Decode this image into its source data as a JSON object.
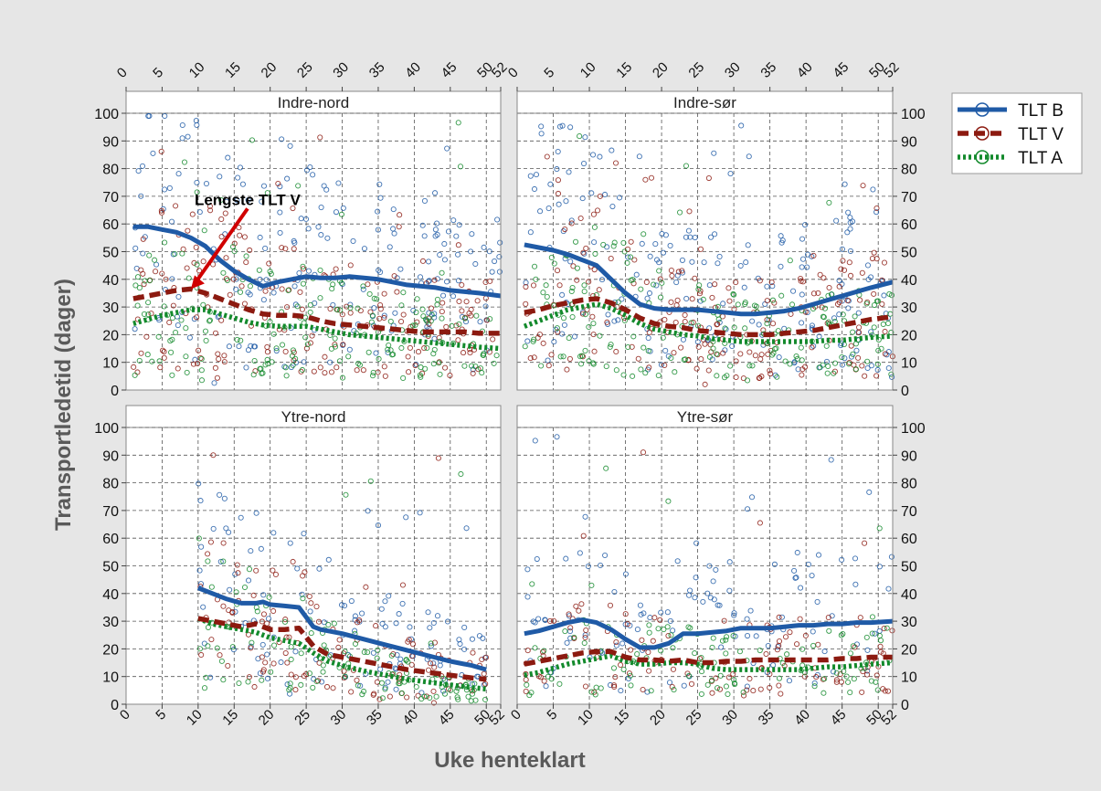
{
  "chart_data": {
    "type": "scatter",
    "ylabel": "Transportledetid (dager)",
    "xlabel": "Uke henteklart",
    "y_ticks": [
      0,
      10,
      20,
      30,
      40,
      50,
      60,
      70,
      80,
      90,
      100
    ],
    "x_ticks": [
      0,
      5,
      10,
      15,
      20,
      25,
      30,
      35,
      40,
      45,
      50,
      52
    ],
    "ylim": [
      0,
      100
    ],
    "xlim": [
      0,
      52
    ],
    "grid": true,
    "legend_position": "right",
    "colors": {
      "TLT B": "#1f5aa6",
      "TLT V": "#8c1a10",
      "TLT A": "#138a2c",
      "annotation": "#d00000"
    },
    "legend": [
      {
        "name": "TLT B",
        "style": "solid"
      },
      {
        "name": "TLT V",
        "style": "dashed"
      },
      {
        "name": "TLT A",
        "style": "dotted"
      }
    ],
    "panels": [
      {
        "title": "Indre-nord",
        "annotation": "Lengste TLT V",
        "series": [
          {
            "name": "TLT B",
            "x": [
              1,
              3,
              5,
              7,
              9,
              11,
              13,
              15,
              17,
              19,
              21,
              23,
              25,
              27,
              29,
              31,
              33,
              35,
              37,
              39,
              41,
              43,
              45,
              47,
              49,
              52
            ],
            "y": [
              59,
              59,
              58,
              57,
              55,
              52,
              47,
              43,
              40,
              37.5,
              39,
              40,
              41,
              40.5,
              40.5,
              41,
              40.5,
              40,
              39,
              38,
              37.5,
              37,
              36,
              35.5,
              35,
              34
            ]
          },
          {
            "name": "TLT V",
            "x": [
              1,
              3,
              5,
              7,
              9,
              11,
              13,
              15,
              17,
              19,
              21,
              23,
              25,
              27,
              29,
              31,
              33,
              35,
              37,
              39,
              41,
              43,
              45,
              47,
              49,
              52
            ],
            "y": [
              33,
              34,
              35,
              36,
              36.5,
              35,
              33,
              31,
              29,
              27.5,
              27,
              27,
              26.5,
              25,
              24,
              23.5,
              23,
              22.5,
              22,
              21.5,
              21,
              21,
              21,
              21,
              20.5,
              20.5
            ]
          },
          {
            "name": "TLT A",
            "x": [
              1,
              3,
              5,
              7,
              9,
              11,
              13,
              15,
              17,
              19,
              21,
              23,
              25,
              27,
              29,
              31,
              33,
              35,
              37,
              39,
              41,
              43,
              45,
              47,
              49,
              52
            ],
            "y": [
              24,
              25.5,
              27,
              28,
              29,
              29,
              27.5,
              26,
              24.5,
              23.5,
              23,
              23,
              23,
              22,
              21,
              20,
              19.5,
              19,
              18.5,
              18,
              17.5,
              17,
              16.5,
              16,
              15.5,
              15
            ]
          }
        ]
      },
      {
        "title": "Indre-sør",
        "annotation": "",
        "series": [
          {
            "name": "TLT B",
            "x": [
              1,
              3,
              5,
              7,
              9,
              11,
              13,
              15,
              17,
              19,
              21,
              23,
              25,
              27,
              29,
              31,
              33,
              35,
              37,
              39,
              41,
              43,
              45,
              47,
              49,
              52
            ],
            "y": [
              52.5,
              51.5,
              50.5,
              49,
              47,
              45,
              40,
              35,
              31,
              29.5,
              29,
              29,
              29,
              28.5,
              28,
              27.5,
              27.5,
              28,
              28.5,
              29.5,
              31,
              32.5,
              34,
              35.5,
              37,
              39
            ]
          },
          {
            "name": "TLT V",
            "x": [
              1,
              3,
              5,
              7,
              9,
              11,
              13,
              15,
              17,
              19,
              21,
              23,
              25,
              27,
              29,
              31,
              33,
              35,
              37,
              39,
              41,
              43,
              45,
              47,
              49,
              52
            ],
            "y": [
              28,
              29,
              30.5,
              31.5,
              32.5,
              33,
              31.5,
              29,
              26,
              24,
              23,
              22.5,
              21.5,
              21,
              20.5,
              20,
              20,
              20,
              20.5,
              21,
              21.5,
              22.5,
              23.5,
              24.5,
              25.5,
              26.5
            ]
          },
          {
            "name": "TLT A",
            "x": [
              1,
              3,
              5,
              7,
              9,
              11,
              13,
              15,
              17,
              19,
              21,
              23,
              25,
              27,
              29,
              31,
              33,
              35,
              37,
              39,
              41,
              43,
              45,
              47,
              49,
              52
            ],
            "y": [
              23,
              25,
              27,
              29,
              30,
              31,
              29.5,
              27,
              24,
              22,
              21,
              20,
              19.5,
              18.5,
              18,
              17.5,
              17.5,
              17.5,
              17.5,
              17.5,
              17.5,
              18,
              18,
              18.5,
              19,
              19.5
            ]
          }
        ]
      },
      {
        "title": "Ytre-nord",
        "annotation": "",
        "series": [
          {
            "name": "TLT B",
            "x": [
              10,
              12,
              14,
              16,
              18,
              19,
              20,
              22,
              24,
              26,
              27,
              30,
              33,
              36,
              39,
              42,
              45,
              48,
              50
            ],
            "y": [
              42,
              40,
              38,
              36.5,
              36.5,
              37,
              36,
              35.5,
              35,
              28,
              27,
              25.5,
              23.5,
              21.5,
              19.5,
              17.5,
              15.5,
              14,
              12.5
            ]
          },
          {
            "name": "TLT V",
            "x": [
              10,
              12,
              14,
              16,
              18,
              20,
              22,
              24,
              26,
              28,
              30,
              33,
              36,
              39,
              42,
              45,
              48,
              50
            ],
            "y": [
              31,
              30,
              29,
              28,
              29,
              27,
              27,
              27.5,
              21,
              18,
              17,
              15.5,
              14,
              12.5,
              11.5,
              10.5,
              9.5,
              9
            ]
          },
          {
            "name": "TLT A",
            "x": [
              10,
              12,
              14,
              16,
              18,
              20,
              22,
              24,
              26,
              28,
              30,
              33,
              36,
              39,
              42,
              45,
              48,
              50
            ],
            "y": [
              31,
              29,
              28,
              27,
              26,
              24,
              23,
              22,
              18.5,
              15.5,
              14,
              12,
              10.5,
              9,
              8,
              7,
              6,
              5.5
            ]
          }
        ]
      },
      {
        "title": "Ytre-sør",
        "annotation": "",
        "series": [
          {
            "name": "TLT B",
            "x": [
              1,
              3,
              5,
              7,
              9,
              11,
              13,
              15,
              17,
              19,
              21,
              23,
              25,
              27,
              29,
              31,
              33,
              35,
              37,
              39,
              41,
              43,
              45,
              47,
              49,
              52
            ],
            "y": [
              25.5,
              26.5,
              28,
              29.5,
              30.5,
              29.5,
              27,
              23.5,
              20.5,
              20.5,
              22,
              25.5,
              25.5,
              26,
              26.5,
              27.5,
              27.5,
              27.5,
              28,
              28.5,
              28.5,
              29,
              29,
              29.5,
              29.5,
              30
            ]
          },
          {
            "name": "TLT V",
            "x": [
              1,
              3,
              5,
              7,
              9,
              11,
              13,
              15,
              17,
              19,
              21,
              23,
              25,
              27,
              29,
              31,
              33,
              35,
              37,
              39,
              41,
              43,
              45,
              47,
              49,
              52
            ],
            "y": [
              14.5,
              15.5,
              16.5,
              17.5,
              18.5,
              19,
              19,
              17,
              16,
              16,
              15.5,
              16,
              15,
              15,
              15.5,
              15.5,
              16,
              16,
              16,
              16,
              16,
              16,
              16.5,
              16.5,
              17,
              17
            ]
          },
          {
            "name": "TLT A",
            "x": [
              1,
              3,
              5,
              7,
              9,
              11,
              13,
              15,
              17,
              19,
              21,
              23,
              25,
              27,
              29,
              31,
              33,
              35,
              37,
              39,
              41,
              43,
              45,
              47,
              49,
              52
            ],
            "y": [
              10.5,
              11.5,
              13,
              14.5,
              15.5,
              16.5,
              17.5,
              15.5,
              14.5,
              14.5,
              15,
              15,
              14.5,
              13,
              12.5,
              12.5,
              12.5,
              12.5,
              12.5,
              12.5,
              13,
              13.5,
              13.5,
              14,
              14.5,
              15
            ]
          }
        ]
      }
    ]
  }
}
